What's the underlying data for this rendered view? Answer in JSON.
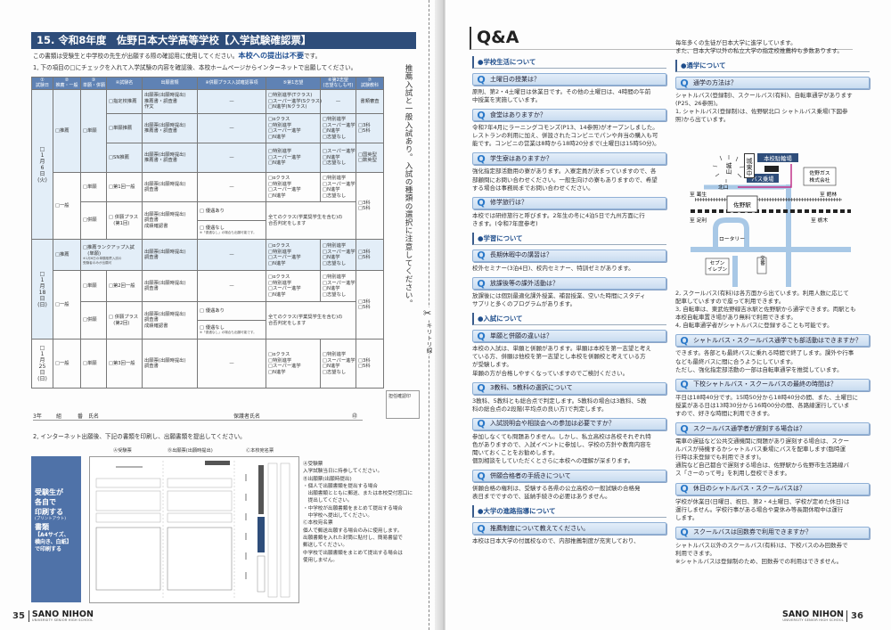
{
  "left_page": {
    "title": "15. 令和8年度　佐野日本大学高等学校【入学試験確認票】",
    "intro_pre": "この書類は受験生と中学校の先生が出願する際の確認用に使用してください。",
    "intro_bold": "本校への提出は不要",
    "intro_post": "です。",
    "step1": "1, 下の項目の□にチェックを入れて入学試験の内容を確認後、本校ホームページからインターネットで出願してください。",
    "table": {
      "headers": [
        "①\n試験日",
        "②\n推薦・一般",
        "③\n単願・併願",
        "④試験名",
        "出願書類",
        "※併願プラス入試確認事項",
        "⑤第1志望",
        "⑥第2志望\n(志望なしも可)",
        "⑦\n試験教科"
      ],
      "rows": [
        {
          "rec": true,
          "cells": [
            {
              "t": "□\n1\n月\n6\n日\n(火)",
              "rs": 6,
              "cls": "date"
            },
            {
              "t": "□推薦",
              "rs": 3
            },
            {
              "t": "□単願",
              "rs": 3
            },
            {
              "t": "□指定校推薦"
            },
            {
              "t": "出願票(出願時提出)\n推薦書・調査書\n作文"
            },
            {
              "t": "—",
              "cls": "c"
            },
            {
              "t": "□特別進学(Tクラス)\n□スーパー進学(Sクラス)\n□N進学(Nクラス)"
            },
            {
              "t": "—",
              "cls": "c"
            },
            {
              "t": "書類審査",
              "cls": "c"
            }
          ]
        },
        {
          "rec": true,
          "cells": [
            {
              "t": "□単願推薦"
            },
            {
              "t": "出願票(出願時提出)\n推薦書・調査書"
            },
            {
              "t": "—",
              "cls": "c"
            },
            {
              "t": "□αクラス\n□特別進学\n□スーパー進学\n□N進学"
            },
            {
              "t": "□特別進学\n□スーパー進学\n□N進学\n□志望なし"
            },
            {
              "t": "□3科\n□5科"
            }
          ]
        },
        {
          "rec": true,
          "cells": [
            {
              "t": "□SN推薦"
            },
            {
              "t": "出願票(出願時提出)\n推薦書・調査書"
            },
            {
              "t": "—",
              "cls": "c"
            },
            {
              "t": "□特別進学\n□スーパー進学\n□N進学"
            },
            {
              "t": "□スーパー進学\n□N進学\n□志望なし"
            },
            {
              "t": "□国英型\n□数英型"
            }
          ]
        },
        {
          "cells": [
            {
              "t": "□一般",
              "rs": 3
            },
            {
              "t": "□単願"
            },
            {
              "t": "□第1回一般"
            },
            {
              "t": "出願票(出願時提出)\n調査書"
            },
            {
              "t": "—",
              "cls": "c"
            },
            {
              "t": "□αクラス\n□特別進学\n□スーパー進学\n□N進学"
            },
            {
              "t": "□特別進学\n□スーパー進学\n□N進学\n□志望なし"
            },
            {
              "t": "□3科\n□5科",
              "rs": 3
            }
          ]
        },
        {
          "cells": [
            {
              "t": "□併願",
              "rs": 2
            },
            {
              "t": "□ 併願プラス\n　(第1回)",
              "rs": 2
            },
            {
              "t": "出願票(出願時提出)\n調査書\n成績確認書",
              "rs": 2
            },
            {
              "t": "□ 優遇あり"
            },
            {
              "t": "全てのクラス(学業奨学生を含む)の\n合否判定をします",
              "rs": 2,
              "cs": 2
            }
          ]
        },
        {
          "cells": [
            {
              "t": "□ 優遇なし",
              "note": "※「優遇なし」の場合も出願可能です。"
            }
          ]
        },
        {
          "rec": true,
          "cells": [
            {
              "t": "□\n1\n月\n18\n日\n(日)",
              "rs": 4,
              "cls": "date"
            },
            {
              "t": "□推薦"
            },
            {
              "t": "□推薦ランクアップ入試\n　(単願)",
              "note": "※1月6日の単願推薦入試の\n受験者のみが出願可",
              "cs": 2
            },
            {
              "t": "出願票(出願時提出)\n調査書"
            },
            {
              "t": "—",
              "cls": "c"
            },
            {
              "t": "□αクラス\n□特別進学\n□スーパー進学\n□N進学"
            },
            {
              "t": "□特別進学\n□スーパー進学\n□N進学\n□志望なし"
            },
            {
              "t": "□3科\n□5科"
            }
          ]
        },
        {
          "cells": [
            {
              "t": "□一般",
              "rs": 3
            },
            {
              "t": "□単願"
            },
            {
              "t": "□第2回一般"
            },
            {
              "t": "出願票(出願時提出)\n調査書"
            },
            {
              "t": "—",
              "cls": "c"
            },
            {
              "t": "□αクラス\n□特別進学\n□スーパー進学\n□N進学"
            },
            {
              "t": "□特別進学\n□スーパー進学\n□N進学\n□志望なし"
            },
            {
              "t": "□3科\n□5科",
              "rs": 3
            }
          ]
        },
        {
          "cells": [
            {
              "t": "□併願",
              "rs": 2
            },
            {
              "t": "□ 併願プラス\n　(第2回)",
              "rs": 2
            },
            {
              "t": "出願票(出願時提出)\n調査書\n成績確認書",
              "rs": 2
            },
            {
              "t": "□ 優遇あり"
            },
            {
              "t": "全てのクラス(学業奨学生を含む)の\n合否判定をします",
              "rs": 2,
              "cs": 2
            }
          ]
        },
        {
          "cells": [
            {
              "t": "□ 優遇なし",
              "note": "※「優遇なし」の場合も出願可能です。"
            }
          ]
        },
        {
          "cells": [
            {
              "t": "□\n1\n月\n25\n日\n(日)",
              "cls": "date"
            },
            {
              "t": "□一般"
            },
            {
              "t": "□単願"
            },
            {
              "t": "□第3回一般"
            },
            {
              "t": "出願票(出願時提出)\n調査書"
            },
            {
              "t": "—",
              "cls": "c"
            },
            {
              "t": "□αクラス\n□特別進学\n□スーパー進学\n□N進学"
            },
            {
              "t": "□特別進学\n□スーパー進学\n□N進学\n□志望なし"
            },
            {
              "t": "□3科\n□5科"
            }
          ]
        }
      ]
    },
    "side_note": "推薦入試と一般入試あり。入試の種類の選択に注意してください。",
    "cut_label": "キリトリ線",
    "teacher_stamp": "担任確認印",
    "name_line": {
      "year": "3年",
      "class": "組",
      "number": "番",
      "name": "氏名",
      "guardian": "保護者氏名",
      "seal": "㊞"
    },
    "step2": "2, インターネット出願後、下記の書類を印刷し、出願書類を提出してください。",
    "print_box": {
      "l1": "受験生が",
      "l2": "各自で",
      "l3": "印刷する",
      "l4": "(プリントアウト)",
      "l5": "書類",
      "l6": "【A4サイズ、",
      "l7": "横向き、白紙】",
      "l8": "で印刷する"
    },
    "form_labels": [
      "Ⓐ受験票",
      "Ⓑ出願票(出願時提出)",
      "Ⓒ本校宛名票"
    ],
    "form_desc": "Ⓐ受験票\n入学試験当日に持参してください。\nⒷ出願票(出願時提出)\n・個人で出願書類を提出する場合\n　出願書類とともに郵送、または本校受付窓口に\n　提出してください。\n・中学校が出願書類をまとめて提出する場合\n　中学校へ提出してください。\nⒸ本校宛名票\n個人で郵送出願する場合のみに使用します。\n出願書類を入れた封筒に貼付し、簡易書留で\n郵送してください。\n中学校で出願書類をまとめて提出する場合は\n使用しません。",
    "page_number": "35",
    "logo": "SANO NIHON",
    "logo_sub": "UNIVERSITY SENIOR HIGH SCHOOL"
  },
  "right_page": {
    "title": "Q&A",
    "left_col": [
      {
        "type": "sec",
        "t": "●学校生活について"
      },
      {
        "type": "q",
        "t": "土曜日の授業は？"
      },
      {
        "type": "a",
        "t": "原則、第2・4土曜日は休業日です。その他の土曜日は、4時間の午前\n中授業を実施しています。"
      },
      {
        "type": "q",
        "t": "食堂はありますか？"
      },
      {
        "type": "a",
        "t": "令和7年4月にラーニングコモンズ(P13、14参照)がオープンしました。\nレストランの利用に加え、併設されたコンビニでパンや弁当の購入も可\n能です。コンビニの営業は8時から18時20分まで(土曜日は15時50分)。"
      },
      {
        "type": "q",
        "t": "学生寮はありますか？"
      },
      {
        "type": "a",
        "t": "強化指定部活動用の寮があります。入寮定員が決まっていますので、各\n部顧問にお問い合わせください。一般生向けの寮もありますので、希望\nする場合は事務局までお問い合わせください。"
      },
      {
        "type": "q",
        "t": "修学旅行は？"
      },
      {
        "type": "a",
        "t": "本校では研修旅行と呼びます。2年生の冬に4泊5日で九州方面に行\nきます。(令和7年度参考)"
      },
      {
        "type": "sec",
        "t": "●学習について"
      },
      {
        "type": "q",
        "t": "長期休暇中の講習は？"
      },
      {
        "type": "a",
        "t": "校外セミナー(3泊4日)、校内セミナー、特訓ゼミがあります。"
      },
      {
        "type": "q",
        "t": "放課後等の課外活動は？"
      },
      {
        "type": "a",
        "t": "放課後には個別最適化課外授業、補習授業、空いた時間にスタディ\nサプリと多くのプログラムがあります。"
      },
      {
        "type": "sec",
        "t": "●入試について"
      },
      {
        "type": "q",
        "t": "単願と併願の違いは？"
      },
      {
        "type": "a",
        "t": "本校の入試は、単願と併願があります。単願は本校を第一志望と考え\nている方、併願は他校を第一志望とし本校を併願校と考えている方\nが受験します。\n単願の方が合格しやすくなっていますのでご検討ください。"
      },
      {
        "type": "q",
        "t": "3教科、5教科の選択について"
      },
      {
        "type": "a",
        "t": "3教科、5教科とも総合点で判定します。5教科の場合は3教科、5教\n科の総合点の2段階(平均点の良い方)で判定します。"
      },
      {
        "type": "q",
        "t": "入試説明会や相談会への参加は必要ですか？"
      },
      {
        "type": "a",
        "t": "参加しなくても問題ありません。しかし、私立高校は各校それぞれ特\n色がありますので、入試イベントに参加し、学校の方針や教育内容を\n聞いておくことをお勧めします。\n個別相談をしていただくとさらに本校への理解が深まります。"
      },
      {
        "type": "q",
        "t": "併願合格者の手続きについて"
      },
      {
        "type": "a",
        "t": "併願合格の権利は、受験する各県の公立高校の一般試験の合格発\n表日までですので、延納手続きの必要はありません。"
      },
      {
        "type": "sec",
        "t": "●大学の進路指導について"
      },
      {
        "type": "q",
        "t": "推薦制度について教えてください。"
      },
      {
        "type": "a",
        "t": "本校は日本大学の付属校なので、内部推薦制度が充実しており、"
      }
    ],
    "right_col_top": [
      {
        "type": "a",
        "t": "毎年多くの生徒が日本大学に進学しています。\nまた、日本大学以外の私立大学の指定校推薦枠も多数あります。"
      },
      {
        "type": "sec",
        "t": "●通学について"
      },
      {
        "type": "q",
        "t": "通学の方法は？"
      },
      {
        "type": "a",
        "t": "シャトルバス(登録制)、スクールバス(有料)、自転車通学があります\n(P25、26参照)。\n1, シャトルバス(登録制)は、佐野駅北口 シャトルバス乗場(下図参\n照)から出ています。"
      }
    ],
    "map": {
      "shiroyama": "城山",
      "joto": "城東中",
      "bike": "本校駐輪場",
      "bus": "バス乗場",
      "gas": "佐野ガス\n株式会社",
      "kitaguchi": "北口",
      "kuzuu": "至 葛生",
      "tatebayashi": "至 館林",
      "sano": "佐野駅",
      "ashikaga": "至 足利",
      "tochigi": "至 栃木",
      "rotary": "ロータリー",
      "seven": "セブン\nイレブン",
      "koban": "交番"
    },
    "right_col_bottom": [
      {
        "type": "a",
        "t": "2, スクールバス(有料)は各方面から出ています。利用人数に応じて\n配車していますので座って利用できます。\n3, 自転車は、東武佐野線吉水駅と佐野駅から通学できます。両駅とも\n本校自転車置き場があり無料で利用できます。\n4, 自転車通学者がシャトルバスに登録することも可能です。"
      },
      {
        "type": "q",
        "t": "シャトルバス・スクールバス通学でも部活動はできますか？"
      },
      {
        "type": "a",
        "t": "できます。各部とも最終バスに乗れる時間で終了します。課外や行事\nなども最終バスに間に合うようにしています。\nただし、強化指定部活動の一部は自転車通学を推奨しています。"
      },
      {
        "type": "q",
        "t": "下校シャトルバス・スクールバスの最終の時間は？"
      },
      {
        "type": "a",
        "t": "平日は18時40分です。15時50分から18時40分の間、また、土曜日に\n授業がある日は13時30分から16時00分の間、各路線運行していま\nすので、好きな時間に利用できます。"
      },
      {
        "type": "q",
        "t": "スクールバス通学者が遅刻する場合は？"
      },
      {
        "type": "a",
        "t": "電車の遅延など公共交通機関に問題があり遅刻する場合は、スクー\nルバスが待機するかシャトルバス乗場にバスを配車します(臨時運\n行時は未登録でも利用できます)。\n通院など自己都合で遅刻する場合は、佐野駅から佐野市生活路線バ\nス「さーのって号」を利用し登校できます。"
      },
      {
        "type": "q",
        "t": "休日のシャトルバス・スクールバスは？"
      },
      {
        "type": "a",
        "t": "学校が休業日(日曜日、祝日、第2・4土曜日、学校が定めた休日)は\n運行しません。学校行事がある場合や夏休み等長期休暇中は運行\nします。"
      },
      {
        "type": "q",
        "t": "スクールバスは回数券で利用できますか？"
      },
      {
        "type": "a",
        "t": "シャトルバス以外のスクールバス(有料)は、下校バスのみ回数券で\n利用できます。\n※シャトルバスは登録制のため、回数券での利用はできません。"
      }
    ],
    "page_number": "36",
    "logo": "SANO NIHON",
    "logo_sub": "UNIVERSITY SENIOR HIGH SCHOOL"
  },
  "colors": {
    "title_band": "#2e4d7a",
    "accent": "#1f4e8c",
    "q_icon": "#2a78c8",
    "table_header": "#5f82b4",
    "recommend_row": "#e3eef8",
    "print_box": "#4f72a8",
    "route": "#c2338a"
  }
}
